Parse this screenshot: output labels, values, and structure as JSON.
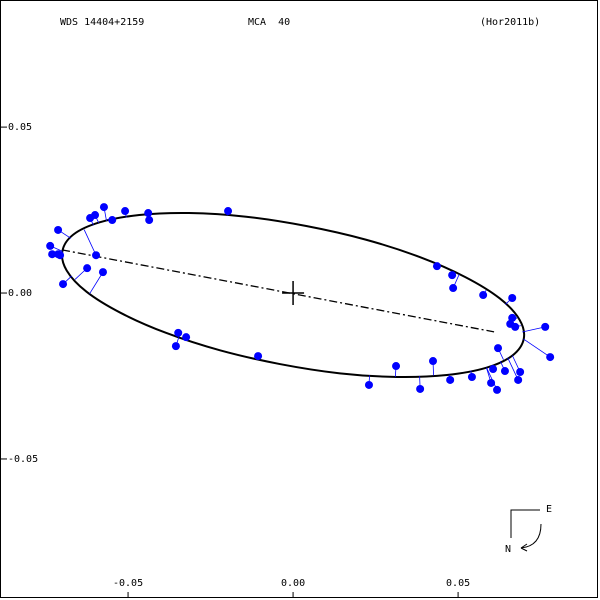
{
  "chart_data": {
    "type": "orbit",
    "title": "WDS 14404+2159",
    "subtitle": "MCA  40",
    "reference": "(Hor2011b)",
    "xlim": [
      -0.0888,
      0.093
    ],
    "ylim": [
      -0.0925,
      0.0883
    ],
    "xticks": [
      -0.05,
      {
        "value": 0,
        "label": "0.00"
      },
      0.05
    ],
    "yticks": [
      -0.05,
      {
        "value": 0,
        "label": "0.00"
      },
      0.05
    ],
    "orbit": {
      "color": "#000000",
      "x": [
        0.0699,
        0.0665,
        0.0586,
        0.0466,
        0.0315,
        0.0142,
        -0.004,
        -0.022,
        -0.0385,
        -0.0522,
        -0.0626,
        -0.0686,
        -0.0699,
        -0.0666,
        -0.0586,
        -0.0466,
        -0.0315,
        -0.0142,
        0.004,
        0.022,
        0.0385,
        0.0522,
        0.0626,
        0.0686
      ],
      "y": [
        -0.0138,
        -0.0188,
        -0.0225,
        -0.0247,
        -0.0253,
        -0.0242,
        -0.0214,
        -0.0173,
        -0.012,
        -0.006,
        0.0004,
        0.0068,
        0.0126,
        0.0176,
        0.0213,
        0.0235,
        0.0241,
        0.023,
        0.0202,
        0.0161,
        0.0108,
        0.0048,
        -0.0016,
        -0.008
      ]
    },
    "line_of_nodes": {
      "color": "#000000",
      "x": [
        -0.07,
        0.0609
      ],
      "y": [
        0.013,
        -0.0117
      ]
    },
    "observations": {
      "color": "#0000ff",
      "x": [
        -0.0736,
        -0.073,
        -0.0712,
        -0.0712,
        -0.0706,
        -0.0697,
        -0.0624,
        -0.0597,
        -0.0576,
        -0.0615,
        -0.06,
        -0.0573,
        -0.0548,
        -0.0509,
        -0.0439,
        -0.0436,
        -0.0197,
        -0.0348,
        -0.0355,
        -0.0324,
        -0.0106,
        0.023,
        0.0312,
        0.0385,
        0.0424,
        0.0476,
        0.0542,
        0.06,
        0.0618,
        0.0606,
        0.0642,
        0.0682,
        0.0688,
        0.0621,
        0.0779,
        0.0764,
        0.0658,
        0.0673,
        0.0664,
        0.0664,
        0.0576,
        0.0482,
        0.0485,
        0.0436
      ],
      "y": [
        0.0142,
        0.0117,
        0.0117,
        0.019,
        0.0114,
        0.0027,
        0.0075,
        0.0114,
        0.0063,
        0.0226,
        0.0235,
        0.0259,
        0.022,
        0.0247,
        0.0241,
        0.022,
        0.0247,
        -0.012,
        -0.016,
        -0.0133,
        -0.019,
        -0.0277,
        -0.022,
        -0.0289,
        -0.0205,
        -0.0262,
        -0.0253,
        -0.0271,
        -0.0292,
        -0.0229,
        -0.0235,
        -0.0262,
        -0.0238,
        -0.0166,
        -0.0193,
        -0.0102,
        -0.0093,
        -0.0102,
        -0.0075,
        -0.0015,
        -0.0006,
        0.0054,
        0.0015,
        0.0081
      ]
    },
    "compass": {
      "east": "E",
      "north": "N"
    }
  }
}
